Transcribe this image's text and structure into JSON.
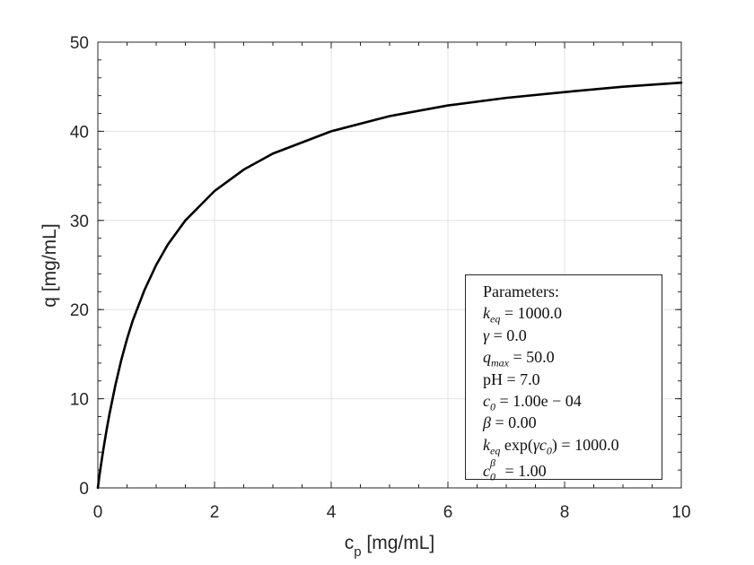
{
  "chart_data": {
    "type": "line",
    "title": "",
    "xlabel": "c_p [mg/mL]",
    "ylabel": "q [mg/mL]",
    "xlim": [
      0,
      10
    ],
    "ylim": [
      0,
      50
    ],
    "xticks": [
      0,
      2,
      4,
      6,
      8,
      10
    ],
    "yticks": [
      0,
      10,
      20,
      30,
      40,
      50
    ],
    "grid": true,
    "series": [
      {
        "color": "#000000",
        "x": [
          0,
          0.01,
          0.02,
          0.03,
          0.05,
          0.08,
          0.1,
          0.15,
          0.2,
          0.3,
          0.4,
          0.5,
          0.6,
          0.8,
          1.0,
          1.2,
          1.5,
          2.0,
          2.5,
          3.0,
          4.0,
          5.0,
          6.0,
          7.0,
          8.0,
          9.0,
          10.0
        ],
        "y": [
          0,
          0.5,
          1.0,
          1.5,
          2.4,
          3.7,
          4.55,
          6.5,
          8.3,
          11.5,
          14.3,
          16.7,
          18.8,
          22.2,
          25.0,
          27.3,
          30.0,
          33.3,
          35.7,
          37.5,
          40.0,
          41.7,
          42.9,
          43.75,
          44.4,
          45.0,
          45.45
        ]
      }
    ],
    "legend": {
      "placement": "bottom-right",
      "lines": [
        "Parameters:",
        "k_eq = 1000.0",
        "γ = 0.0",
        "q_max = 50.0",
        "pH = 7.0",
        "c_0 = 1.00e − 04",
        "β = 0.00",
        "k_eq exp(γc_0) = 1000.0",
        "c_0^β = 1.00"
      ]
    }
  },
  "text": {
    "xlabel_main": "c",
    "xlabel_sub": "p",
    "xlabel_unit": " [mg/mL]",
    "ylabel": "q [mg/mL]",
    "param_title": "Parameters:",
    "keq_value": "1000.0",
    "gamma_value": "0.0",
    "qmax_value": "50.0",
    "ph_value": "7.0",
    "c0_value": "1.00e − 04",
    "beta_value": "0.00",
    "keq_exp_value": "1000.0",
    "c0beta_value": "1.00"
  }
}
